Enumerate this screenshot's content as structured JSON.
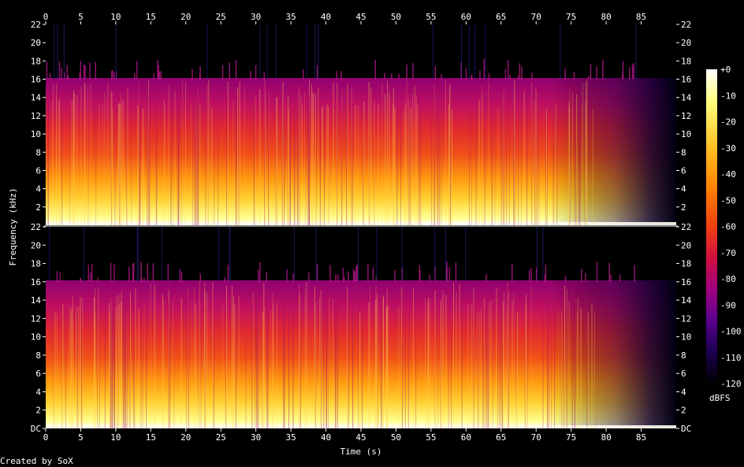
{
  "chart_data": {
    "type": "heatmap",
    "subtype": "spectrogram",
    "channels": 2,
    "xlabel": "Time (s)",
    "ylabel": "Frequency (kHz)",
    "xlim": [
      0,
      90
    ],
    "ylim_khz": [
      0,
      22
    ],
    "x_ticks": [
      "0",
      "5",
      "10",
      "15",
      "20",
      "25",
      "30",
      "35",
      "40",
      "45",
      "50",
      "55",
      "60",
      "65",
      "70",
      "75",
      "80",
      "85"
    ],
    "y_ticks_top": [
      "22",
      "20",
      "18",
      "16",
      "14",
      "12",
      "10",
      "8",
      "6",
      "4",
      "2"
    ],
    "y_ticks_bottom": [
      "22",
      "20",
      "18",
      "16",
      "14",
      "12",
      "10",
      "8",
      "6",
      "4",
      "2",
      "DC"
    ],
    "colorbar": {
      "label": "dBFS",
      "ticks": [
        "+0",
        "-10",
        "-20",
        "-30",
        "-40",
        "-50",
        "-60",
        "-70",
        "-80",
        "-90",
        "-100",
        "-110",
        "-120"
      ],
      "range_db": [
        -120,
        0
      ],
      "colors": [
        "#000000",
        "#1a0050",
        "#5a0090",
        "#a00080",
        "#d01040",
        "#f04010",
        "#ff8000",
        "#ffc020",
        "#ffff80",
        "#ffffff"
      ]
    },
    "lowpass_cutoff_khz": 16,
    "energy_falloff_start_s": 75,
    "signal_end_s": 90
  },
  "footer": {
    "credit": "Created by SoX"
  }
}
